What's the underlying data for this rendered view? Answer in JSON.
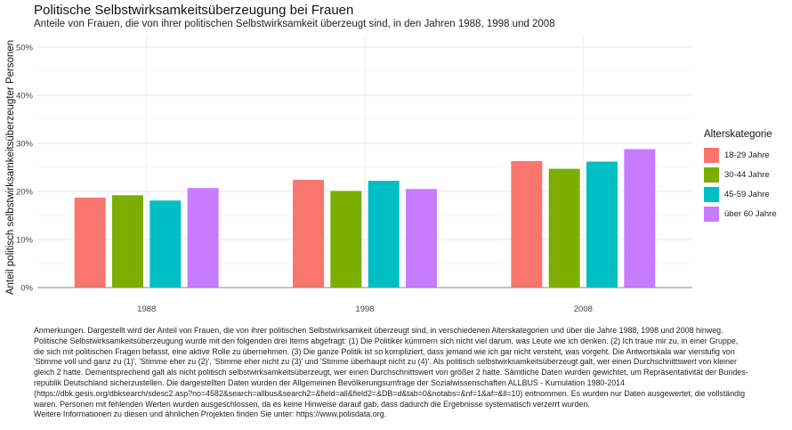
{
  "chart_data": {
    "type": "bar",
    "title": "Politische Selbstwirksamkeitsüberzeugung bei Frauen",
    "subtitle": "Anteile von Frauen, die von ihrer politischen Selbstwirksamkeit überzeugt sind, in den Jahren 1988, 1998 und 2008",
    "xlabel": "",
    "ylabel": "Anteil politisch selbstwirksamkeitsüberzeugter Personen",
    "categories": [
      "1988",
      "1998",
      "2008"
    ],
    "ylim": [
      0,
      0.5
    ],
    "yticks": [
      "0%",
      "10%",
      "20%",
      "30%",
      "40%",
      "50%"
    ],
    "grid": true,
    "legend_title": "Alterskategorie",
    "legend_position": "right",
    "series": [
      {
        "name": "18-29 Jahre",
        "color": "#F8766D",
        "values": [
          0.187,
          0.224,
          0.263
        ]
      },
      {
        "name": "30-44 Jahre",
        "color": "#7CAE00",
        "values": [
          0.192,
          0.201,
          0.247
        ]
      },
      {
        "name": "45-59 Jahre",
        "color": "#00BFC4",
        "values": [
          0.181,
          0.222,
          0.262
        ]
      },
      {
        "name": "über 60 Jahre",
        "color": "#C77CFF",
        "values": [
          0.207,
          0.205,
          0.288
        ]
      }
    ]
  },
  "note": [
    "Anmerkungen. Dargestellt wird der Anteil von Frauen, die von ihrer politischen Selbstwirksamkeit überzeugt sind, in verschiedenen Alterskategorien und über die Jahre 1988, 1998 und 2008 hinweg.",
    "Politische Selbstwirksamkeitsüberzeugung wurde mit den folgenden drei Items abgefragt: (1) Die Politiker kümmern sich nicht viel darum, was Leute wie ich denken. (2)  Ich traue mir zu, in einer Gruppe,",
    "die sich mit politischen Fragen befasst, eine aktive Rolle zu übernehmen. (3) Die ganze Politik ist so kompliziert, dass jemand wie ich gar nicht versteht, was vorgeht. Die Antwortskala war vierstufig von",
    "'Stimme voll und ganz zu (1)', 'Stimme eher zu (2)', 'Stimme eher nicht zu (3)' und 'Stimme überhaupt nicht zu (4)'. Als politisch selbstwirksamkeitsüberzeugt galt, wer einen Durchschnittswert von kleiner",
    "gleich 2 hatte. Dementsprechend galt als nicht politisch selbstwirksamkeitsüberzeugt, wer einen Durchschnittswert von größer 2 hatte. Sämtliche Daten wurden gewichtet, um Repräsentativität der Bundes-",
    "republik Deutschland sicherzustellen. Die dargestellten Daten wurden der Allgemeinen Bevölkerungsumfrage der Sozialwissenschaften ALLBUS - Kumulation 1980-2014",
    "(https://dbk.gesis.org/dbksearch/sdesc2.asp?no=4582&search=allbus&search2=&field=all&field2=&DB=d&tab=0&notabs=&nf=1&af=&ll=10) entnommen. Es wurden nur Daten ausgewertet, die vollständig",
    "waren. Personen mit fehlenden Werten wurden ausgeschlossen, da es keine Hinweise  darauf gab, dass dadurch die Ergebnisse systematisch verzerrt wurden.",
    "Weitere Informationen zu diesen und ähnlichen Projekten finden Sie unter: https://www.polisdata.org."
  ]
}
